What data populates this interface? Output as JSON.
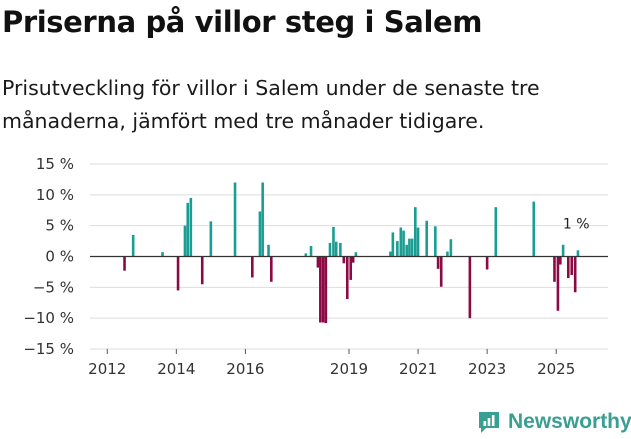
{
  "title": "Priserna på villor steg i Salem",
  "subtitle": "Prisutveckling för villor i Salem under de senaste tre månaderna, jämfört med tre månader tidigare.",
  "brand": "Newsworthy",
  "colors": {
    "positive": "#1a9e93",
    "negative": "#8c0a43",
    "grid": "#dddddd",
    "zero": "#333333",
    "brand": "#3a9f93"
  },
  "chart_data": {
    "type": "bar",
    "ylim": [
      -15,
      15
    ],
    "xlim": [
      2011.5,
      2026.5
    ],
    "y_ticks": [
      {
        "value": 15,
        "label": "15 %"
      },
      {
        "value": 10,
        "label": "10 %"
      },
      {
        "value": 5,
        "label": "5 %"
      },
      {
        "value": 0,
        "label": "0 %"
      },
      {
        "value": -5,
        "label": "−5 %"
      },
      {
        "value": -10,
        "label": "−10 %"
      },
      {
        "value": -15,
        "label": "−15 %"
      }
    ],
    "x_ticks": [
      {
        "value": 2012,
        "label": "2012"
      },
      {
        "value": 2014,
        "label": "2014"
      },
      {
        "value": 2016,
        "label": "2016"
      },
      {
        "value": 2019,
        "label": "2019"
      },
      {
        "value": 2021,
        "label": "2021"
      },
      {
        "value": 2023,
        "label": "2023"
      },
      {
        "value": 2025,
        "label": "2025"
      }
    ],
    "annotation": {
      "x": 2025.58,
      "value": 1,
      "label": "1 %"
    },
    "points": [
      {
        "x": 2012.5,
        "y": -2.3
      },
      {
        "x": 2012.75,
        "y": 3.5
      },
      {
        "x": 2013.6,
        "y": 0.7
      },
      {
        "x": 2014.05,
        "y": -5.5
      },
      {
        "x": 2014.25,
        "y": 5.0
      },
      {
        "x": 2014.33,
        "y": 8.7
      },
      {
        "x": 2014.42,
        "y": 9.5
      },
      {
        "x": 2014.75,
        "y": -4.5
      },
      {
        "x": 2015.0,
        "y": 5.7
      },
      {
        "x": 2015.7,
        "y": 12.0
      },
      {
        "x": 2016.2,
        "y": -3.4
      },
      {
        "x": 2016.42,
        "y": 7.3
      },
      {
        "x": 2016.5,
        "y": 12.0
      },
      {
        "x": 2016.67,
        "y": 1.9
      },
      {
        "x": 2016.75,
        "y": -4.1
      },
      {
        "x": 2017.75,
        "y": 0.5
      },
      {
        "x": 2017.9,
        "y": 1.7
      },
      {
        "x": 2018.1,
        "y": -1.8
      },
      {
        "x": 2018.17,
        "y": -10.7
      },
      {
        "x": 2018.25,
        "y": -10.7
      },
      {
        "x": 2018.33,
        "y": -10.8
      },
      {
        "x": 2018.45,
        "y": 2.2
      },
      {
        "x": 2018.55,
        "y": 4.8
      },
      {
        "x": 2018.63,
        "y": 2.4
      },
      {
        "x": 2018.75,
        "y": 2.2
      },
      {
        "x": 2018.85,
        "y": -1.1
      },
      {
        "x": 2018.95,
        "y": -6.9
      },
      {
        "x": 2019.05,
        "y": -3.8
      },
      {
        "x": 2019.12,
        "y": -1.0
      },
      {
        "x": 2019.2,
        "y": 0.7
      },
      {
        "x": 2020.2,
        "y": 0.8
      },
      {
        "x": 2020.27,
        "y": 3.9
      },
      {
        "x": 2020.4,
        "y": 2.5
      },
      {
        "x": 2020.5,
        "y": 4.7
      },
      {
        "x": 2020.58,
        "y": 4.2
      },
      {
        "x": 2020.67,
        "y": 1.9
      },
      {
        "x": 2020.75,
        "y": 2.9
      },
      {
        "x": 2020.83,
        "y": 2.9
      },
      {
        "x": 2020.92,
        "y": 8.0
      },
      {
        "x": 2021.0,
        "y": 4.7
      },
      {
        "x": 2021.25,
        "y": 5.8
      },
      {
        "x": 2021.5,
        "y": 4.9
      },
      {
        "x": 2021.58,
        "y": -2.0
      },
      {
        "x": 2021.67,
        "y": -4.9
      },
      {
        "x": 2021.85,
        "y": 0.8
      },
      {
        "x": 2021.95,
        "y": 2.8
      },
      {
        "x": 2022.5,
        "y": -10.0
      },
      {
        "x": 2023.0,
        "y": -2.1
      },
      {
        "x": 2023.25,
        "y": 8.0
      },
      {
        "x": 2024.35,
        "y": 8.9
      },
      {
        "x": 2024.95,
        "y": -4.1
      },
      {
        "x": 2025.05,
        "y": -8.8
      },
      {
        "x": 2025.12,
        "y": -1.3
      },
      {
        "x": 2025.2,
        "y": 1.9
      },
      {
        "x": 2025.35,
        "y": -3.5
      },
      {
        "x": 2025.45,
        "y": -3.0
      },
      {
        "x": 2025.55,
        "y": -5.8
      },
      {
        "x": 2025.63,
        "y": 1.0
      }
    ]
  }
}
